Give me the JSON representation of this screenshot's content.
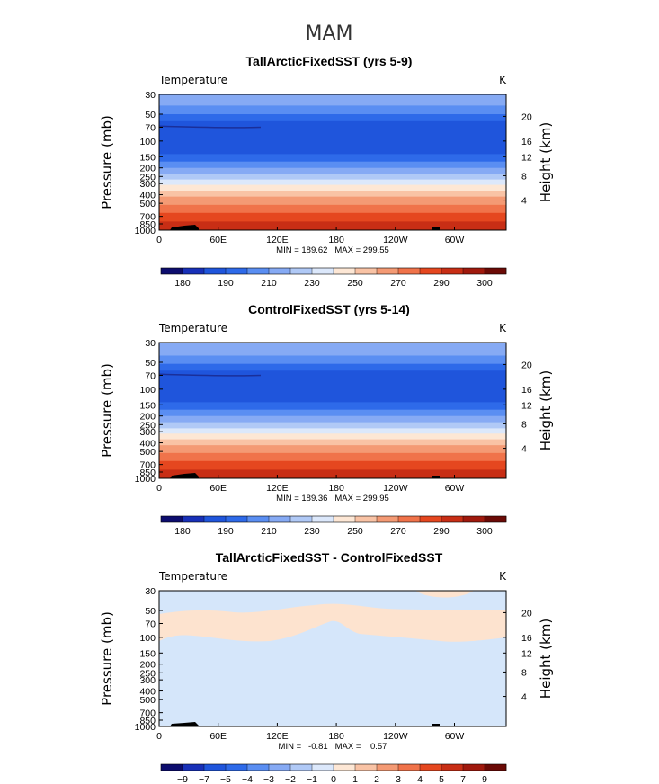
{
  "figure_title": "MAM",
  "chart_data": [
    {
      "type": "heatmap",
      "title": "TallArcticFixedSST (yrs 5-9)",
      "left_label": "Temperature",
      "right_label": "K",
      "ylabel": "Pressure (mb)",
      "ylabel_right": "Height (km)",
      "x_ticks": [
        "0",
        "60E",
        "120E",
        "180",
        "120W",
        "60W"
      ],
      "y_ticks": [
        "30",
        "50",
        "70",
        "100",
        "150",
        "200",
        "250",
        "300",
        "400",
        "500",
        "700",
        "850",
        "1000"
      ],
      "height_ticks": [
        "20",
        "16",
        "12",
        "8",
        "4"
      ],
      "min_max_text": "MIN = 189.62   MAX = 299.55",
      "colorbar_labels": [
        "180",
        "190",
        "210",
        "230",
        "250",
        "270",
        "290",
        "300"
      ],
      "colorbar_colors": [
        "#0d0d6e",
        "#1830b8",
        "#1f55dc",
        "#2e6ae9",
        "#5a8ef2",
        "#86aaf4",
        "#b0c9f6",
        "#dce8fb",
        "#fde7d5",
        "#f9c3a5",
        "#f49a74",
        "#f0734a",
        "#e5471f",
        "#c82e15",
        "#a0190d",
        "#6b0a06"
      ]
    },
    {
      "type": "heatmap",
      "title": "ControlFixedSST (yrs 5-14)",
      "left_label": "Temperature",
      "right_label": "K",
      "ylabel": "Pressure (mb)",
      "ylabel_right": "Height (km)",
      "x_ticks": [
        "0",
        "60E",
        "120E",
        "180",
        "120W",
        "60W"
      ],
      "y_ticks": [
        "30",
        "50",
        "70",
        "100",
        "150",
        "200",
        "250",
        "300",
        "400",
        "500",
        "700",
        "850",
        "1000"
      ],
      "height_ticks": [
        "20",
        "16",
        "12",
        "8",
        "4"
      ],
      "min_max_text": "MIN = 189.36   MAX = 299.95",
      "colorbar_labels": [
        "180",
        "190",
        "210",
        "230",
        "250",
        "270",
        "290",
        "300"
      ],
      "colorbar_colors": [
        "#0d0d6e",
        "#1830b8",
        "#1f55dc",
        "#2e6ae9",
        "#5a8ef2",
        "#86aaf4",
        "#b0c9f6",
        "#dce8fb",
        "#fde7d5",
        "#f9c3a5",
        "#f49a74",
        "#f0734a",
        "#e5471f",
        "#c82e15",
        "#a0190d",
        "#6b0a06"
      ]
    },
    {
      "type": "heatmap",
      "title": "TallArcticFixedSST - ControlFixedSST",
      "left_label": "Temperature",
      "right_label": "K",
      "ylabel": "Pressure (mb)",
      "ylabel_right": "Height (km)",
      "x_ticks": [
        "0",
        "60E",
        "120E",
        "180",
        "120W",
        "60W"
      ],
      "y_ticks": [
        "30",
        "50",
        "70",
        "100",
        "150",
        "200",
        "250",
        "300",
        "400",
        "500",
        "700",
        "850",
        "1000"
      ],
      "height_ticks": [
        "20",
        "16",
        "12",
        "8",
        "4"
      ],
      "min_max_text": "MIN =   -0.81   MAX =    0.57",
      "colorbar_labels": [
        "-9",
        "-7",
        "-5",
        "-4",
        "-3",
        "-2",
        "-1",
        "0",
        "1",
        "2",
        "3",
        "4",
        "5",
        "7",
        "9"
      ],
      "colorbar_colors": [
        "#0d0d6e",
        "#1830b8",
        "#1f55dc",
        "#2e6ae9",
        "#5a8ef2",
        "#86aaf4",
        "#b0c9f6",
        "#dce8fb",
        "#fde7d5",
        "#f9c3a5",
        "#f49a74",
        "#f0734a",
        "#e5471f",
        "#c82e15",
        "#a0190d",
        "#6b0a06"
      ]
    }
  ]
}
